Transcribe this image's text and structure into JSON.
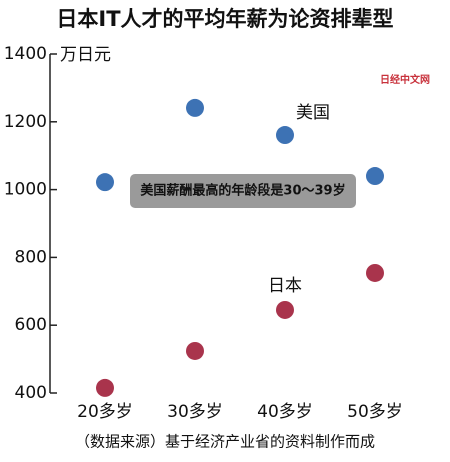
{
  "chart_data": {
    "type": "scatter",
    "title": "日本IT人才的平均年薪为论资排辈型",
    "y_label": "万日元",
    "categories": [
      "20多岁",
      "30多岁",
      "40多岁",
      "50多岁"
    ],
    "series": [
      {
        "name": "美国",
        "color": "#3d72b4",
        "values": [
          1022,
          1241,
          1161,
          1040
        ]
      },
      {
        "name": "日本",
        "color": "#a9344c",
        "values": [
          415,
          524,
          645,
          754
        ]
      }
    ],
    "ylim": [
      400,
      1400
    ],
    "yticks": [
      400,
      600,
      800,
      1000,
      1200,
      1400
    ],
    "annotation": "美国薪酬最高的年龄段是30～39岁",
    "watermark": "日经中文网",
    "source": "（数据来源）基于经济产业省的资料制作而成"
  }
}
